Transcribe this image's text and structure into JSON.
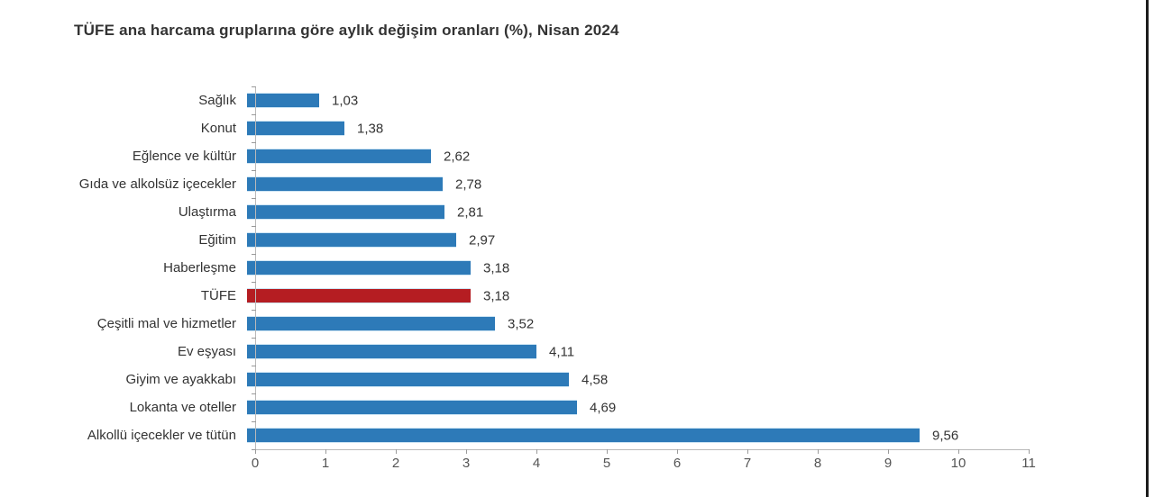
{
  "chart_data": {
    "type": "bar",
    "orientation": "horizontal",
    "title": "TÜFE ana harcama gruplarına göre aylık değişim oranları (%), Nisan 2024",
    "categories": [
      "Sağlık",
      "Konut",
      "Eğlence ve kültür",
      "Gıda ve alkolsüz içecekler",
      "Ulaştırma",
      "Eğitim",
      "Haberleşme",
      "TÜFE",
      "Çeşitli mal ve hizmetler",
      "Ev eşyası",
      "Giyim ve ayakkabı",
      "Lokanta ve oteller",
      "Alkollü içecekler ve tütün"
    ],
    "values": [
      1.03,
      1.38,
      2.62,
      2.78,
      2.81,
      2.97,
      3.18,
      3.18,
      3.52,
      4.11,
      4.58,
      4.69,
      9.56
    ],
    "value_labels": [
      "1,03",
      "1,38",
      "2,62",
      "2,78",
      "2,81",
      "2,97",
      "3,18",
      "3,18",
      "3,52",
      "4,11",
      "4,58",
      "4,69",
      "9,56"
    ],
    "highlight_category": "TÜFE",
    "colors": {
      "bar": "#2d7ab8",
      "highlight": "#b51d22"
    },
    "xlabel": "",
    "ylabel": "",
    "xlim": [
      0,
      11
    ],
    "x_ticks": [
      0,
      1,
      2,
      3,
      4,
      5,
      6,
      7,
      8,
      9,
      10,
      11
    ],
    "grid": false,
    "legend": "none"
  }
}
